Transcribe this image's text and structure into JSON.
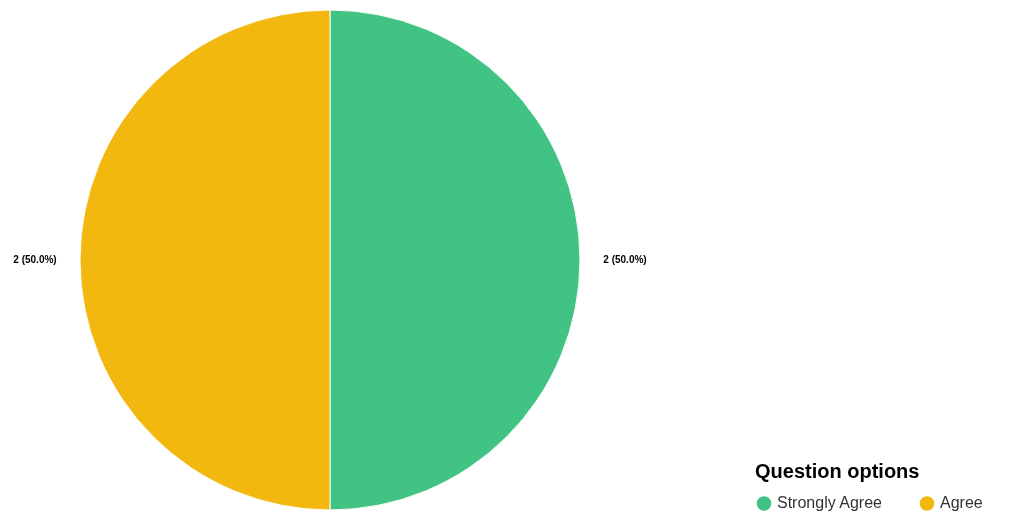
{
  "chart_data": {
    "type": "pie",
    "legend_title": "Question options",
    "categories": [
      "Strongly Agree",
      "Agree"
    ],
    "values": [
      2,
      2
    ],
    "colors": [
      "#41c483",
      "#f3b80f"
    ],
    "value_labels": [
      "2 (50.0%)",
      "2 (50.0%)"
    ],
    "legend": "bottom right"
  }
}
